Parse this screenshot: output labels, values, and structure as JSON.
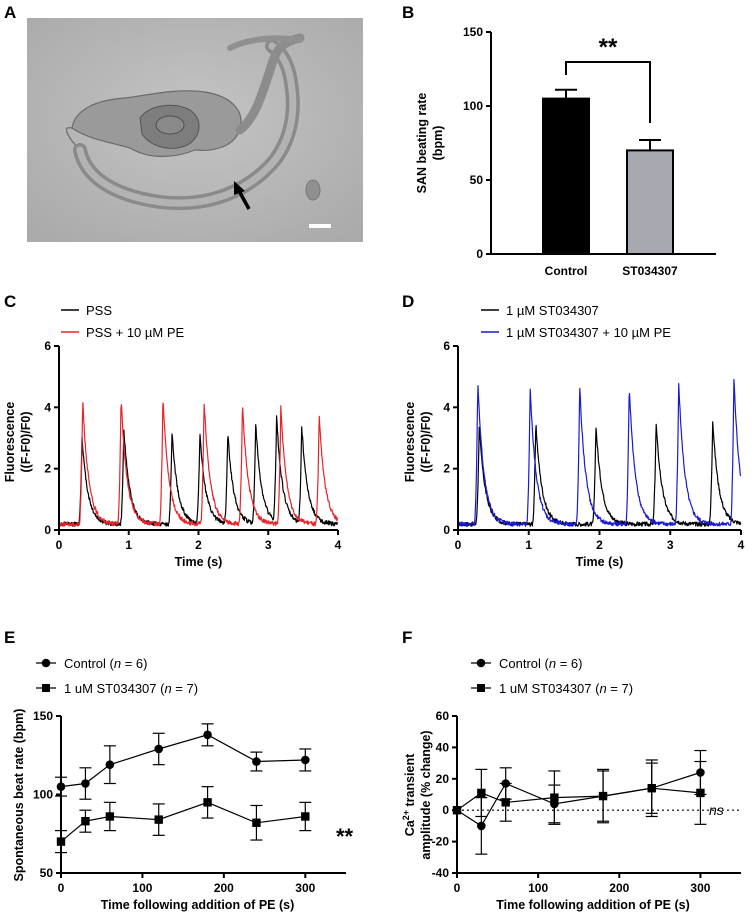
{
  "panel_labels": {
    "A": "A",
    "B": "B",
    "C": "C",
    "D": "D",
    "E": "E",
    "F": "F"
  },
  "colors": {
    "black": "#000000",
    "red": "#e8242a",
    "blue": "#1a1ad6",
    "gray": "#a8a8b0"
  },
  "image_alt": "micrograph-with-arrow-and-scalebar",
  "chart_data": [
    {
      "id": "B",
      "type": "bar",
      "categories": [
        "Control",
        "ST034307"
      ],
      "values": [
        105,
        70
      ],
      "errors": [
        6,
        7
      ],
      "bar_colors": [
        "#000000",
        "#a8a8b0"
      ],
      "ylabel_line1": "SAN beating rate",
      "ylabel_line2": "(bpm)",
      "ylim": [
        0,
        150
      ],
      "yticks": [
        0,
        50,
        100,
        150
      ],
      "significance": "**"
    },
    {
      "id": "C",
      "type": "line",
      "xlabel": "Time (s)",
      "ylabel_line1": "Fluorescence",
      "ylabel_line2": "((F-F0)/F0)",
      "xlim": [
        0,
        4
      ],
      "ylim": [
        0,
        6
      ],
      "xticks": [
        0,
        1,
        2,
        3,
        4
      ],
      "yticks": [
        0,
        2,
        4,
        6
      ],
      "series": [
        {
          "name": "PSS",
          "color": "#000000",
          "peak_times": [
            0.33,
            0.93,
            1.62,
            2.02,
            2.42,
            2.82,
            3.12,
            3.48
          ],
          "peak_values": [
            2.85,
            3.1,
            3.0,
            2.95,
            2.95,
            3.25,
            3.4,
            3.15
          ]
        },
        {
          "name": "PSS + 10 µM PE",
          "color": "#e8242a",
          "peak_times": [
            0.34,
            0.89,
            1.49,
            2.08,
            2.63,
            3.18,
            3.73
          ],
          "peak_values": [
            4.05,
            4.1,
            4.15,
            4.05,
            3.9,
            3.8,
            3.55
          ]
        }
      ]
    },
    {
      "id": "D",
      "type": "line",
      "xlabel": "Time (s)",
      "ylabel_line1": "Fluorescence",
      "ylabel_line2": "((F-F0)/F0)",
      "xlim": [
        0,
        4
      ],
      "ylim": [
        0,
        6
      ],
      "xticks": [
        0,
        1,
        2,
        3,
        4
      ],
      "yticks": [
        0,
        2,
        4,
        6
      ],
      "series": [
        {
          "name": "1 µM ST034307",
          "color": "#000000",
          "peak_times": [
            0.3,
            1.1,
            1.95,
            2.8,
            3.6
          ],
          "peak_values": [
            3.2,
            3.3,
            3.2,
            3.3,
            3.4
          ]
        },
        {
          "name": "1 µM ST034307 + 10 µM PE",
          "color": "#1a1ad6",
          "peak_times": [
            0.28,
            1.02,
            1.72,
            2.42,
            3.12,
            3.9
          ],
          "peak_values": [
            4.65,
            4.45,
            4.5,
            4.5,
            4.6,
            4.75
          ]
        }
      ]
    },
    {
      "id": "E",
      "type": "scatter",
      "xlabel": "Time following addition of PE (s)",
      "ylabel": "Spontaneous beat rate (bpm)",
      "xlim": [
        0,
        350
      ],
      "ylim": [
        50,
        150
      ],
      "xticks": [
        0,
        100,
        200,
        300
      ],
      "yticks": [
        50,
        100,
        150
      ],
      "series": [
        {
          "name_prefix": "Control (",
          "name_n": "n",
          "name_suffix": " = 6)",
          "marker": "circle",
          "x": [
            0,
            30,
            60,
            120,
            180,
            240,
            300
          ],
          "y": [
            105,
            107,
            119,
            129,
            138,
            121,
            122
          ],
          "err": [
            6,
            10,
            12,
            10,
            7,
            6,
            7
          ]
        },
        {
          "name_prefix": "1 uM ST034307 (",
          "name_n": "n",
          "name_suffix": " = 7)",
          "marker": "square",
          "x": [
            0,
            30,
            60,
            120,
            180,
            240,
            300
          ],
          "y": [
            70,
            83,
            86,
            84,
            95,
            82,
            86
          ],
          "err": [
            7,
            7,
            9,
            10,
            10,
            11,
            9
          ]
        }
      ],
      "annotation": "**"
    },
    {
      "id": "F",
      "type": "scatter",
      "xlabel": "Time following addition of PE (s)",
      "ylabel_line1_pre": "Ca",
      "ylabel_line1_sup": "2+",
      "ylabel_line1_post": " transient",
      "ylabel_line2": "amplitude (% change)",
      "xlim": [
        0,
        350
      ],
      "ylim": [
        -40,
        60
      ],
      "xticks": [
        0,
        100,
        200,
        300
      ],
      "yticks": [
        -40,
        -20,
        0,
        20,
        40,
        60
      ],
      "series": [
        {
          "name_prefix": "Control (",
          "name_n": "n",
          "name_suffix": " = 6)",
          "marker": "circle",
          "x": [
            0,
            30,
            60,
            120,
            180,
            240,
            300
          ],
          "y": [
            0,
            -10,
            17,
            4,
            9,
            14,
            24
          ],
          "err": [
            0,
            18,
            10,
            12,
            16,
            18,
            14
          ]
        },
        {
          "name_prefix": "1 uM ST034307 (",
          "name_n": "n",
          "name_suffix": " = 7)",
          "marker": "square",
          "x": [
            0,
            30,
            60,
            120,
            180,
            240,
            300
          ],
          "y": [
            0,
            11,
            5,
            8,
            9,
            14,
            11
          ],
          "err": [
            0,
            15,
            12,
            17,
            17,
            16,
            20
          ]
        }
      ],
      "annotation": "ns"
    }
  ]
}
